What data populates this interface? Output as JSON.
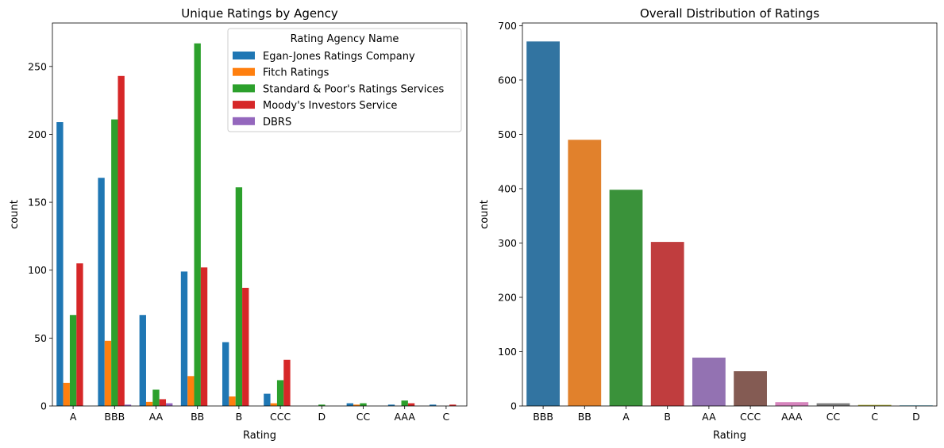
{
  "chart_data": [
    {
      "type": "bar",
      "title": "Unique Ratings by Agency",
      "xlabel": "Rating",
      "ylabel": "count",
      "ylim": [
        0,
        282
      ],
      "yticks": [
        0,
        50,
        100,
        150,
        200,
        250
      ],
      "categories": [
        "A",
        "BBB",
        "AA",
        "BB",
        "B",
        "CCC",
        "D",
        "CC",
        "AAA",
        "C"
      ],
      "grid": false,
      "legend": {
        "title": "Rating Agency Name",
        "placement": "top-right"
      },
      "series": [
        {
          "name": "Egan-Jones Ratings Company",
          "color": "#1f77b4",
          "values": [
            209,
            168,
            67,
            99,
            47,
            9,
            0,
            2,
            1,
            1
          ]
        },
        {
          "name": "Fitch Ratings",
          "color": "#ff7f0e",
          "values": [
            17,
            48,
            3,
            22,
            7,
            2,
            0,
            1,
            0,
            0
          ]
        },
        {
          "name": "Standard & Poor's Ratings Services",
          "color": "#2ca02c",
          "values": [
            67,
            211,
            12,
            267,
            161,
            19,
            1,
            2,
            4,
            0
          ]
        },
        {
          "name": "Moody's Investors Service",
          "color": "#d62728",
          "values": [
            105,
            243,
            5,
            102,
            87,
            34,
            0,
            0,
            2,
            1
          ]
        },
        {
          "name": "DBRS",
          "color": "#9467bd",
          "values": [
            0,
            1,
            2,
            0,
            0,
            0,
            0,
            0,
            0,
            0
          ]
        }
      ]
    },
    {
      "type": "bar",
      "title": "Overall Distribution of Ratings",
      "xlabel": "Rating",
      "ylabel": "count",
      "ylim": [
        0,
        705
      ],
      "yticks": [
        0,
        100,
        200,
        300,
        400,
        500,
        600,
        700
      ],
      "categories": [
        "BBB",
        "BB",
        "A",
        "B",
        "AA",
        "CCC",
        "AAA",
        "CC",
        "C",
        "D"
      ],
      "values": [
        671,
        490,
        398,
        302,
        89,
        64,
        7,
        5,
        2,
        1
      ],
      "colors": [
        "#3274a1",
        "#e1812c",
        "#3a923a",
        "#c03d3e",
        "#9372b2",
        "#845b53",
        "#d684bd",
        "#7f7f7f",
        "#a9aa35",
        "#2e9ec2"
      ],
      "grid": false
    }
  ]
}
